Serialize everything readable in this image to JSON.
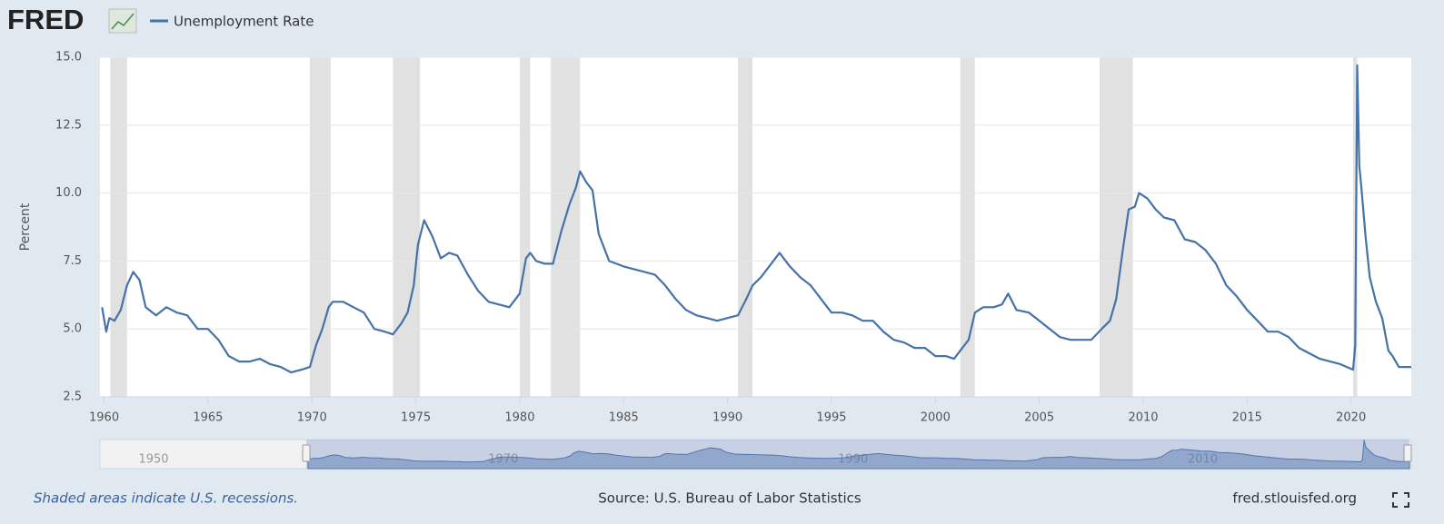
{
  "logo": "FRED",
  "chart_data": {
    "type": "line",
    "y_label": "Percent",
    "footnote": "Shaded areas indicate U.S. recessions.",
    "source": "Source: U.S. Bureau of Labor Statistics",
    "site": "fred.stlouisfed.org",
    "x": [
      1959.9,
      1960.1,
      1960.25,
      1960.5,
      1960.8,
      1961.1,
      1961.4,
      1961.7,
      1962.0,
      1962.5,
      1963.0,
      1963.5,
      1964.0,
      1964.5,
      1965.0,
      1965.5,
      1966.0,
      1966.5,
      1967.0,
      1967.5,
      1968.0,
      1968.5,
      1969.0,
      1969.5,
      1969.9,
      1970.2,
      1970.5,
      1970.8,
      1971.0,
      1971.5,
      1972.0,
      1972.5,
      1973.0,
      1973.5,
      1973.9,
      1974.3,
      1974.6,
      1974.9,
      1975.1,
      1975.4,
      1975.8,
      1976.2,
      1976.6,
      1977.0,
      1977.5,
      1978.0,
      1978.5,
      1979.0,
      1979.5,
      1980.0,
      1980.3,
      1980.5,
      1980.8,
      1981.2,
      1981.6,
      1982.0,
      1982.4,
      1982.7,
      1982.9,
      1983.2,
      1983.5,
      1983.8,
      1984.3,
      1985.0,
      1985.5,
      1986.0,
      1986.5,
      1987.0,
      1987.5,
      1988.0,
      1988.5,
      1989.0,
      1989.5,
      1990.0,
      1990.5,
      1990.9,
      1991.2,
      1991.6,
      1992.0,
      1992.5,
      1993.0,
      1993.5,
      1994.0,
      1994.5,
      1995.0,
      1995.5,
      1996.0,
      1996.5,
      1997.0,
      1997.5,
      1998.0,
      1998.5,
      1999.0,
      1999.5,
      2000.0,
      2000.5,
      2000.9,
      2001.3,
      2001.6,
      2001.9,
      2002.3,
      2002.8,
      2003.2,
      2003.5,
      2003.9,
      2004.5,
      2005.0,
      2005.5,
      2006.0,
      2006.5,
      2007.0,
      2007.5,
      2008.0,
      2008.4,
      2008.7,
      2009.0,
      2009.3,
      2009.6,
      2009.8,
      2010.2,
      2010.6,
      2011.0,
      2011.5,
      2012.0,
      2012.5,
      2013.0,
      2013.5,
      2014.0,
      2014.5,
      2015.0,
      2015.5,
      2016.0,
      2016.5,
      2017.0,
      2017.5,
      2018.0,
      2018.5,
      2019.0,
      2019.5,
      2020.1,
      2020.2,
      2020.3,
      2020.4,
      2020.5,
      2020.7,
      2020.9,
      2021.2,
      2021.5,
      2021.8,
      2022.0,
      2022.3,
      2022.6,
      2022.9
    ],
    "series": [
      {
        "name": "Unemployment Rate",
        "color": "#4572a7",
        "values": [
          5.8,
          4.9,
          5.4,
          5.3,
          5.7,
          6.6,
          7.1,
          6.8,
          5.8,
          5.5,
          5.8,
          5.6,
          5.5,
          5.0,
          5.0,
          4.6,
          4.0,
          3.8,
          3.8,
          3.9,
          3.7,
          3.6,
          3.4,
          3.5,
          3.6,
          4.4,
          5.0,
          5.8,
          6.0,
          6.0,
          5.8,
          5.6,
          5.0,
          4.9,
          4.8,
          5.2,
          5.6,
          6.6,
          8.1,
          9.0,
          8.4,
          7.6,
          7.8,
          7.7,
          7.0,
          6.4,
          6.0,
          5.9,
          5.8,
          6.3,
          7.6,
          7.8,
          7.5,
          7.4,
          7.4,
          8.6,
          9.6,
          10.2,
          10.8,
          10.4,
          10.1,
          8.5,
          7.5,
          7.3,
          7.2,
          7.1,
          7.0,
          6.6,
          6.1,
          5.7,
          5.5,
          5.4,
          5.3,
          5.4,
          5.5,
          6.1,
          6.6,
          6.9,
          7.3,
          7.8,
          7.3,
          6.9,
          6.6,
          6.1,
          5.6,
          5.6,
          5.5,
          5.3,
          5.3,
          4.9,
          4.6,
          4.5,
          4.3,
          4.3,
          4.0,
          4.0,
          3.9,
          4.3,
          4.6,
          5.6,
          5.8,
          5.8,
          5.9,
          6.3,
          5.7,
          5.6,
          5.3,
          5.0,
          4.7,
          4.6,
          4.6,
          4.6,
          5.0,
          5.3,
          6.1,
          7.8,
          9.4,
          9.5,
          10.0,
          9.8,
          9.4,
          9.1,
          9.0,
          8.3,
          8.2,
          7.9,
          7.4,
          6.6,
          6.2,
          5.7,
          5.3,
          4.9,
          4.9,
          4.7,
          4.3,
          4.1,
          3.9,
          3.8,
          3.7,
          3.5,
          4.4,
          14.7,
          11.0,
          10.2,
          8.4,
          6.9,
          6.0,
          5.4,
          4.2,
          4.0,
          3.6,
          3.6,
          3.6
        ]
      }
    ],
    "recessions": [
      [
        1960.3,
        1961.1
      ],
      [
        1969.9,
        1970.9
      ],
      [
        1973.9,
        1975.2
      ],
      [
        1980.0,
        1980.5
      ],
      [
        1981.5,
        1982.9
      ],
      [
        1990.5,
        1991.2
      ],
      [
        2001.2,
        2001.9
      ],
      [
        2007.9,
        2009.5
      ],
      [
        2020.1,
        2020.3
      ]
    ],
    "recession_color": "#e1e1e1",
    "xlim": [
      1959.8,
      2022.9
    ],
    "xticks": [
      1960,
      1965,
      1970,
      1975,
      1980,
      1985,
      1990,
      1995,
      2000,
      2005,
      2010,
      2015,
      2020
    ],
    "ylim": [
      2.5,
      15
    ],
    "yticks": [
      {
        "value": 2.5,
        "label": "2.5"
      },
      {
        "value": 5,
        "label": "5.0"
      },
      7.5,
      {
        "value": 10,
        "label": "10.0"
      },
      12.5,
      {
        "value": 15,
        "label": "15.0"
      }
    ],
    "grid": true,
    "navigator_xlim": [
      1948,
      2023
    ],
    "navigator_ticks": [
      1950,
      1970,
      1990,
      2010
    ]
  }
}
